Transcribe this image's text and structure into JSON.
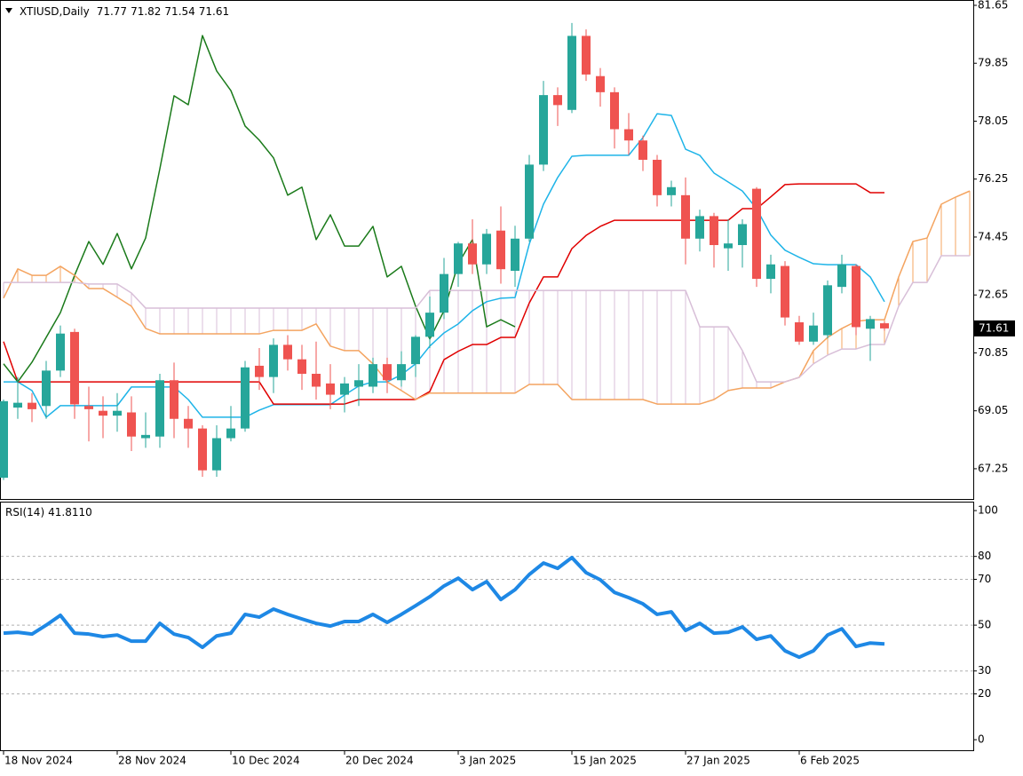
{
  "chart_data": [
    {
      "type": "candlestick",
      "title": "XTIUSD,Daily",
      "categories": [
        "18 Nov 2024",
        null,
        null,
        null,
        null,
        null,
        null,
        null,
        "28 Nov 2024",
        null,
        null,
        null,
        null,
        null,
        null,
        null,
        "10 Dec 2024",
        null,
        null,
        null,
        null,
        null,
        null,
        null,
        "20 Dec 2024",
        null,
        null,
        null,
        null,
        null,
        null,
        null,
        "3 Jan 2025",
        null,
        null,
        null,
        null,
        null,
        null,
        null,
        "15 Jan 2025",
        null,
        null,
        null,
        null,
        null,
        null,
        null,
        "27 Jan 2025",
        null,
        null,
        null,
        null,
        null,
        null,
        null,
        "6 Feb 2025",
        null,
        null,
        null,
        null,
        null,
        null,
        null,
        null,
        null,
        null,
        null,
        null
      ],
      "candles": {
        "up_color": "#26a69a",
        "down_color": "#ef5350",
        "open": [
          66.97,
          69.15,
          69.3,
          69.2,
          70.3,
          71.5,
          69.2,
          69.05,
          68.9,
          69.0,
          68.2,
          68.25,
          70.0,
          68.8,
          68.5,
          67.2,
          68.2,
          68.5,
          70.45,
          70.1,
          71.1,
          70.65,
          70.2,
          69.9,
          69.55,
          69.8,
          69.8,
          70.5,
          70.0,
          70.5,
          71.35,
          72.1,
          73.3,
          74.25,
          73.6,
          74.65,
          73.4,
          74.4,
          76.7,
          78.86,
          78.4,
          80.7,
          79.45,
          78.95,
          77.8,
          77.45,
          76.85,
          75.75,
          75.75,
          74.4,
          75.1,
          74.1,
          74.2,
          75.95,
          73.15,
          73.55,
          71.8,
          71.2,
          71.4,
          72.9,
          73.55,
          71.6,
          71.77,
          null,
          null,
          null,
          null,
          null,
          null
        ],
        "high": [
          69.4,
          70.1,
          69.6,
          70.6,
          71.7,
          71.6,
          69.8,
          69.5,
          69.6,
          69.5,
          69.0,
          70.2,
          70.55,
          69.2,
          68.6,
          68.6,
          69.2,
          70.6,
          71.0,
          71.3,
          71.4,
          71.1,
          71.2,
          70.5,
          70.1,
          70.5,
          70.7,
          70.7,
          70.9,
          71.4,
          72.6,
          73.8,
          74.3,
          75.0,
          74.7,
          75.4,
          74.8,
          77.0,
          79.3,
          79.1,
          81.1,
          80.9,
          79.7,
          79.1,
          78.3,
          77.6,
          77.0,
          76.2,
          76.3,
          75.3,
          75.2,
          75.0,
          75.0,
          76.0,
          73.9,
          73.7,
          72.0,
          72.1,
          73.1,
          73.9,
          73.6,
          72.0,
          71.82,
          null,
          null,
          null,
          null,
          null,
          null
        ],
        "low": [
          66.9,
          68.8,
          68.7,
          68.8,
          70.1,
          68.8,
          68.1,
          68.2,
          68.4,
          67.8,
          67.9,
          67.9,
          68.2,
          67.9,
          67.0,
          67.0,
          68.1,
          68.4,
          69.7,
          69.6,
          70.3,
          69.7,
          69.4,
          69.1,
          69.0,
          69.2,
          69.6,
          69.6,
          69.8,
          70.1,
          71.0,
          71.9,
          72.9,
          73.3,
          73.3,
          73.0,
          72.9,
          74.3,
          76.5,
          77.9,
          78.3,
          79.3,
          78.5,
          77.2,
          77.0,
          76.5,
          75.4,
          75.4,
          73.6,
          74.0,
          73.5,
          73.4,
          73.5,
          72.9,
          72.7,
          71.7,
          71.1,
          71.1,
          71.3,
          72.7,
          71.4,
          70.6,
          71.54,
          null,
          null,
          null,
          null,
          null,
          null
        ],
        "close": [
          69.35,
          69.3,
          69.1,
          70.3,
          71.45,
          69.25,
          69.1,
          68.9,
          69.05,
          68.25,
          68.3,
          70.0,
          68.8,
          68.5,
          67.2,
          68.2,
          68.5,
          70.4,
          70.1,
          71.1,
          70.65,
          70.2,
          69.8,
          69.55,
          69.9,
          70.0,
          70.5,
          70.0,
          70.5,
          71.35,
          72.1,
          73.3,
          74.25,
          73.6,
          74.55,
          73.45,
          74.4,
          76.7,
          78.86,
          78.55,
          80.7,
          79.5,
          78.95,
          77.8,
          77.45,
          76.85,
          75.75,
          76.0,
          74.4,
          75.1,
          74.2,
          74.25,
          74.85,
          73.15,
          73.6,
          71.95,
          71.2,
          71.7,
          72.95,
          73.6,
          71.65,
          71.9,
          71.61,
          null,
          null,
          null,
          null,
          null,
          null
        ]
      },
      "lines": [
        {
          "color": "#1eb4e8",
          "values": [
            69.95,
            69.95,
            69.68,
            68.85,
            69.21,
            69.21,
            69.21,
            69.21,
            69.21,
            69.79,
            69.79,
            69.79,
            69.79,
            69.4,
            68.85,
            68.85,
            68.85,
            68.85,
            69.07,
            69.24,
            69.24,
            69.24,
            69.24,
            69.24,
            69.54,
            69.82,
            69.95,
            69.95,
            70.17,
            70.51,
            71.06,
            71.47,
            71.75,
            72.16,
            72.44,
            72.55,
            72.57,
            74.23,
            75.47,
            76.3,
            76.96,
            76.99,
            76.99,
            76.99,
            76.99,
            77.54,
            78.28,
            78.23,
            77.18,
            76.99,
            76.44,
            76.16,
            75.88,
            75.33,
            74.51,
            74.04,
            73.82,
            73.62,
            73.59,
            73.59,
            73.59,
            73.21,
            72.44,
            null,
            null,
            null,
            null,
            null,
            null
          ]
        },
        {
          "color": "#e00000",
          "values": [
            71.2,
            69.95,
            69.95,
            69.95,
            69.95,
            69.95,
            69.95,
            69.95,
            69.95,
            69.95,
            69.95,
            69.95,
            69.95,
            69.95,
            69.95,
            69.95,
            69.95,
            69.95,
            69.95,
            69.26,
            69.26,
            69.26,
            69.26,
            69.26,
            69.26,
            69.4,
            69.4,
            69.4,
            69.4,
            69.4,
            69.65,
            70.64,
            70.9,
            71.11,
            71.11,
            71.33,
            71.33,
            72.4,
            73.21,
            73.21,
            74.09,
            74.5,
            74.78,
            74.97,
            74.97,
            74.97,
            74.97,
            74.97,
            74.97,
            74.97,
            74.97,
            74.97,
            75.33,
            75.33,
            75.7,
            76.08,
            76.1,
            76.1,
            76.1,
            76.1,
            76.1,
            75.83,
            75.83,
            null,
            null,
            null,
            null,
            null,
            null
          ]
        },
        {
          "color": "#1a7a1a",
          "values": [
            70.51,
            69.95,
            70.56,
            71.33,
            72.1,
            73.26,
            74.31,
            73.6,
            74.56,
            73.46,
            74.42,
            76.57,
            78.84,
            78.56,
            80.71,
            79.61,
            79.0,
            77.9,
            77.46,
            76.91,
            75.75,
            76.0,
            74.37,
            75.14,
            74.17,
            74.17,
            74.78,
            73.21,
            73.54,
            72.3,
            71.28,
            72.16,
            73.62,
            74.37,
            71.66,
            71.88,
            71.66,
            null,
            null,
            null,
            null,
            null,
            null,
            null,
            null,
            null,
            null,
            null,
            null,
            null,
            null,
            null,
            null,
            null,
            null,
            null,
            null,
            null,
            null,
            null,
            null,
            null,
            null,
            null,
            null,
            null,
            null,
            null,
            null
          ]
        },
        {
          "color": "#f4a460",
          "values": [
            72.55,
            73.46,
            73.26,
            73.26,
            73.54,
            73.26,
            72.85,
            72.85,
            72.58,
            72.3,
            71.61,
            71.44,
            71.44,
            71.44,
            71.44,
            71.44,
            71.44,
            71.44,
            71.44,
            71.55,
            71.55,
            71.55,
            71.75,
            71.06,
            70.92,
            70.92,
            70.51,
            69.95,
            69.68,
            69.4,
            69.6,
            69.6,
            69.6,
            69.6,
            69.6,
            69.6,
            69.6,
            69.87,
            69.87,
            69.87,
            69.4,
            69.4,
            69.4,
            69.4,
            69.4,
            69.4,
            69.26,
            69.26,
            69.26,
            69.26,
            69.4,
            69.68,
            69.76,
            69.76,
            69.76,
            69.95,
            70.09,
            70.92,
            71.33,
            71.61,
            71.83,
            71.88,
            71.88,
            73.21,
            74.31,
            74.42,
            75.47,
            75.69,
            75.88
          ]
        },
        {
          "color": "#d8bfd8",
          "values": [
            73.04,
            73.04,
            73.04,
            73.04,
            73.04,
            73.04,
            72.99,
            72.99,
            72.99,
            72.71,
            72.24,
            72.24,
            72.24,
            72.24,
            72.24,
            72.24,
            72.24,
            72.24,
            72.24,
            72.24,
            72.24,
            72.24,
            72.24,
            72.24,
            72.24,
            72.24,
            72.24,
            72.24,
            72.24,
            72.24,
            72.79,
            72.79,
            72.79,
            72.79,
            72.79,
            72.79,
            72.79,
            72.79,
            72.79,
            72.79,
            72.79,
            72.79,
            72.79,
            72.79,
            72.79,
            72.79,
            72.79,
            72.79,
            72.79,
            71.66,
            71.66,
            71.66,
            70.92,
            69.95,
            69.95,
            69.95,
            70.09,
            70.51,
            70.78,
            70.97,
            70.97,
            71.11,
            71.11,
            72.3,
            73.04,
            73.04,
            73.87,
            73.87,
            73.87
          ]
        }
      ],
      "cloud": true,
      "ylim": [
        66.31,
        81.76
      ],
      "yticks": [
        67.25,
        69.05,
        70.85,
        72.65,
        74.45,
        76.25,
        78.05,
        79.85,
        81.65
      ]
    },
    {
      "type": "line",
      "title": "RSI(14)",
      "current": {
        "value": 41.811,
        "label": "41.8110"
      },
      "color": "#1e88e5",
      "values": [
        46.5,
        46.9,
        46.1,
        50.0,
        54.3,
        46.5,
        46.1,
        45.0,
        45.7,
        43.0,
        43.0,
        50.8,
        46.1,
        44.6,
        40.3,
        45.3,
        46.5,
        54.7,
        53.5,
        57.0,
        54.7,
        52.7,
        50.8,
        49.6,
        51.6,
        51.6,
        54.7,
        51.2,
        54.7,
        58.5,
        62.4,
        67.1,
        70.5,
        65.5,
        69.0,
        61.2,
        65.5,
        72.1,
        77.1,
        74.8,
        79.5,
        72.9,
        69.8,
        64.3,
        62.0,
        59.3,
        54.7,
        55.8,
        47.7,
        50.8,
        46.5,
        46.9,
        49.2,
        43.8,
        45.3,
        38.8,
        36.0,
        38.8,
        45.7,
        48.4,
        40.7,
        42.2,
        41.811,
        null,
        null,
        null,
        null,
        null,
        null
      ],
      "ylim": [
        -4.6,
        103.9
      ],
      "yticks": [
        0,
        20,
        30,
        50,
        70,
        80,
        100
      ],
      "grid": true
    }
  ]
}
